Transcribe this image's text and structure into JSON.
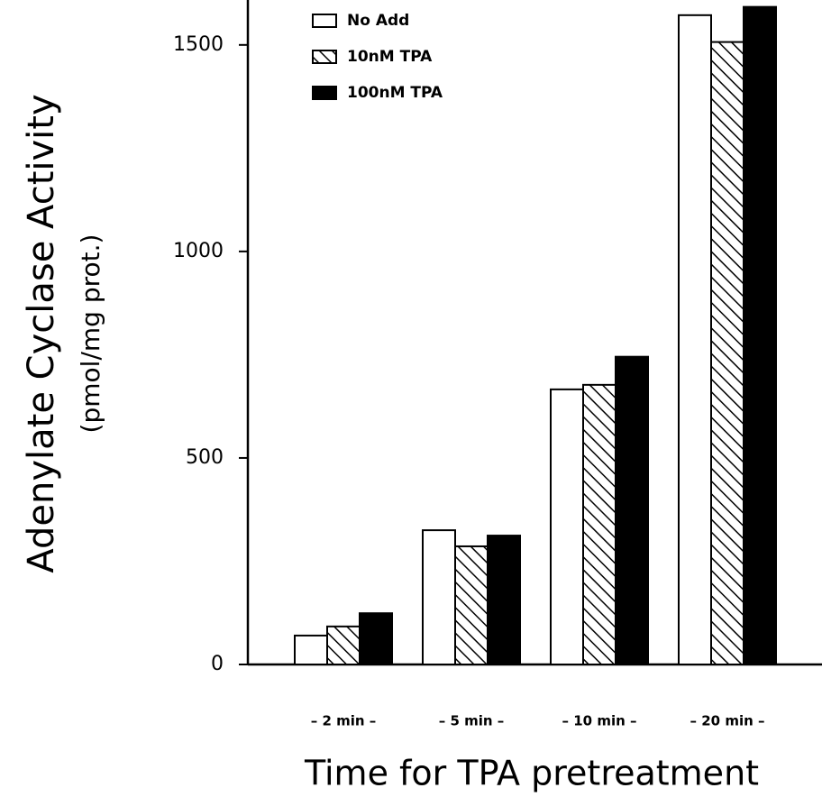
{
  "chart_data": {
    "type": "bar",
    "ylabel": [
      "Adenylate Cyclase Activity",
      "(pmol/mg prot.)"
    ],
    "xlabel": "Time for TPA pretreatment",
    "categories": [
      "– 2 min –",
      "– 5 min –",
      "– 10 min –",
      "– 20 min –"
    ],
    "series": [
      {
        "name": "No Add",
        "color": "#ffffff",
        "hatch": false,
        "values": [
          70,
          325,
          666,
          1572
        ]
      },
      {
        "name": "10nM TPA",
        "color": "#ffffff",
        "hatch": true,
        "values": [
          92,
          286,
          677,
          1507
        ]
      },
      {
        "name": "100nM TPA",
        "color": "#000000",
        "hatch": false,
        "values": [
          124,
          312,
          745,
          1592
        ]
      }
    ],
    "ylim": [
      0,
      1600
    ],
    "yticks": [
      0,
      500,
      1000,
      1500
    ],
    "grid": false,
    "legend": "upper-left"
  }
}
